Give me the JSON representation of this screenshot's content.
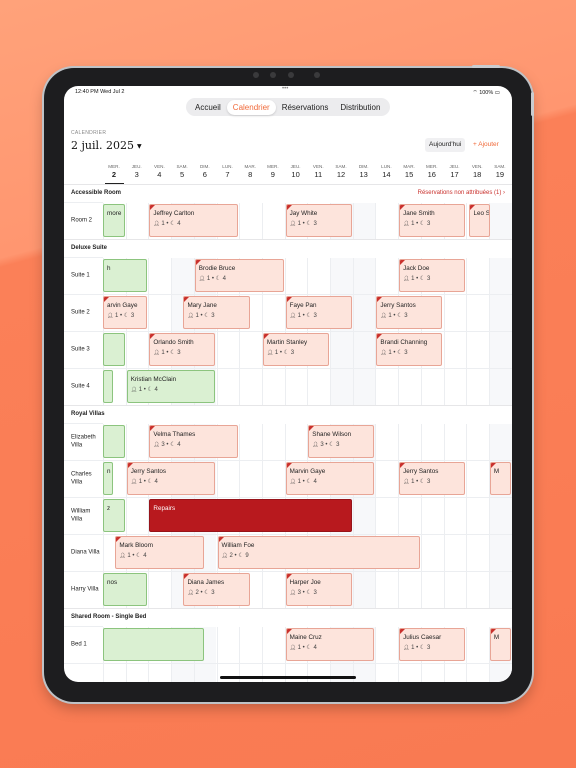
{
  "status": {
    "time": "12:40 PM  Wed Jul 2",
    "battery": "100%",
    "dots": "•••"
  },
  "tabs": [
    {
      "label": "Accueil",
      "active": false
    },
    {
      "label": "Calendrier",
      "active": true
    },
    {
      "label": "Réservations",
      "active": false
    },
    {
      "label": "Distribution",
      "active": false
    }
  ],
  "header": {
    "section_label": "CALENDRIER",
    "date": "2 juil. 2025",
    "today_button": "Aujourd'hui",
    "add_button": "+ Ajouter"
  },
  "days": [
    {
      "name": "MER.",
      "num": "2",
      "today": true
    },
    {
      "name": "JEU.",
      "num": "3"
    },
    {
      "name": "VEN.",
      "num": "4"
    },
    {
      "name": "SAM.",
      "num": "5"
    },
    {
      "name": "DIM.",
      "num": "6"
    },
    {
      "name": "LUN.",
      "num": "7"
    },
    {
      "name": "MAR.",
      "num": "8"
    },
    {
      "name": "MER.",
      "num": "9"
    },
    {
      "name": "JEU.",
      "num": "10"
    },
    {
      "name": "VEN.",
      "num": "11"
    },
    {
      "name": "SAM.",
      "num": "12"
    },
    {
      "name": "DIM.",
      "num": "13"
    },
    {
      "name": "LUN.",
      "num": "14"
    },
    {
      "name": "MAR.",
      "num": "15"
    },
    {
      "name": "MER.",
      "num": "16"
    },
    {
      "name": "JEU.",
      "num": "17"
    },
    {
      "name": "VEN.",
      "num": "18"
    },
    {
      "name": "SAM.",
      "num": "19"
    }
  ],
  "sections": [
    {
      "title": "Accessible Room",
      "right": "Réservations non attribuées (1) ›",
      "rows": [
        {
          "label": "Room 2",
          "bookings": [
            {
              "color": "green",
              "start": -0.3,
              "end": 1.0,
              "name": "more",
              "meta": ""
            },
            {
              "color": "pink",
              "start": 2.0,
              "end": 6.0,
              "name": "Jeffrey Carlton",
              "meta": "1 • 4"
            },
            {
              "color": "pink",
              "start": 8.0,
              "end": 11.0,
              "name": "Jay White",
              "meta": "1 • 3"
            },
            {
              "color": "pink",
              "start": 13.0,
              "end": 16.0,
              "name": "Jane Smith",
              "meta": "1 • 3"
            },
            {
              "color": "pink",
              "start": 16.1,
              "end": 17.1,
              "name": "Leo Sincl",
              "meta": ""
            }
          ]
        }
      ]
    },
    {
      "title": "Deluxe Suite",
      "right": "",
      "rows": [
        {
          "label": "Suite 1",
          "bookings": [
            {
              "color": "green",
              "start": -0.3,
              "end": 2.0,
              "name": "h",
              "meta": ""
            },
            {
              "color": "pink",
              "start": 4.0,
              "end": 8.0,
              "name": "Brodie Bruce",
              "meta": "1 • 4"
            },
            {
              "color": "pink",
              "start": 13.0,
              "end": 16.0,
              "name": "Jack Doe",
              "meta": "1 • 3"
            }
          ]
        },
        {
          "label": "Suite 2",
          "bookings": [
            {
              "color": "pink",
              "start": -0.3,
              "end": 2.0,
              "name": "arvin Gaye",
              "meta": "1 • 3"
            },
            {
              "color": "pink",
              "start": 3.5,
              "end": 6.5,
              "name": "Mary Jane",
              "meta": "1 • 3"
            },
            {
              "color": "pink",
              "start": 8.0,
              "end": 11.0,
              "name": "Faye Pan",
              "meta": "1 • 3"
            },
            {
              "color": "pink",
              "start": 12.0,
              "end": 15.0,
              "name": "Jerry Santos",
              "meta": "1 • 3"
            }
          ]
        },
        {
          "label": "Suite 3",
          "bookings": [
            {
              "color": "green",
              "start": -0.3,
              "end": 1.0,
              "name": "",
              "meta": ""
            },
            {
              "color": "pink",
              "start": 2.0,
              "end": 5.0,
              "name": "Orlando Smith",
              "meta": "1 • 3"
            },
            {
              "color": "pink",
              "start": 7.0,
              "end": 10.0,
              "name": "Martin Stanley",
              "meta": "1 • 3"
            },
            {
              "color": "pink",
              "start": 12.0,
              "end": 15.0,
              "name": "Brandi Channing",
              "meta": "1 • 3"
            }
          ]
        },
        {
          "label": "Suite 4",
          "bookings": [
            {
              "color": "green",
              "start": -0.3,
              "end": 0.5,
              "name": "",
              "meta": ""
            },
            {
              "color": "green",
              "start": 1.0,
              "end": 5.0,
              "name": "Kristian McClain",
              "meta": "1 • 4"
            }
          ]
        }
      ]
    },
    {
      "title": "Royal Villas",
      "right": "",
      "rows": [
        {
          "label": "Elizabeth Villa",
          "bookings": [
            {
              "color": "green",
              "start": -0.3,
              "end": 1.0,
              "name": "",
              "meta": ""
            },
            {
              "color": "pink",
              "start": 2.0,
              "end": 6.0,
              "name": "Velma Thames",
              "meta": "3 • 4"
            },
            {
              "color": "pink",
              "start": 9.0,
              "end": 12.0,
              "name": "Shane Wilson",
              "meta": "3 • 3"
            }
          ]
        },
        {
          "label": "Charles Villa",
          "bookings": [
            {
              "color": "green",
              "start": -0.3,
              "end": 0.5,
              "name": "n C",
              "meta": ""
            },
            {
              "color": "pink",
              "start": 1.0,
              "end": 5.0,
              "name": "Jerry Santos",
              "meta": "1 • 4"
            },
            {
              "color": "pink",
              "start": 8.0,
              "end": 12.0,
              "name": "Marvin Gaye",
              "meta": "1 • 4"
            },
            {
              "color": "pink",
              "start": 13.0,
              "end": 16.0,
              "name": "Jerry Santos",
              "meta": "1 • 3"
            },
            {
              "color": "pink",
              "start": 17.0,
              "end": 18.0,
              "name": "M",
              "meta": ""
            }
          ]
        },
        {
          "label": "William Villa",
          "bookings": [
            {
              "color": "green",
              "start": -0.3,
              "end": 1.0,
              "name": "z",
              "meta": ""
            },
            {
              "color": "red",
              "start": 2.0,
              "end": 11.0,
              "name": "Repairs",
              "meta": ""
            }
          ]
        },
        {
          "label": "Diana Villa",
          "bookings": [
            {
              "color": "pink",
              "start": 0.5,
              "end": 4.5,
              "name": "Mark Bloom",
              "meta": "1 • 4"
            },
            {
              "color": "pink",
              "start": 5.0,
              "end": 14.0,
              "name": "William Foe",
              "meta": "2 • 9"
            }
          ]
        },
        {
          "label": "Harry Villa",
          "bookings": [
            {
              "color": "green",
              "start": -0.3,
              "end": 2.0,
              "name": "nos",
              "meta": ""
            },
            {
              "color": "pink",
              "start": 3.5,
              "end": 6.5,
              "name": "Diana James",
              "meta": "2 • 3"
            },
            {
              "color": "pink",
              "start": 8.0,
              "end": 11.0,
              "name": "Harper Joe",
              "meta": "3 • 3"
            }
          ]
        }
      ]
    },
    {
      "title": "Shared Room - Single Bed",
      "right": "",
      "rows": [
        {
          "label": "Bed 1",
          "bookings": [
            {
              "color": "green",
              "start": -0.3,
              "end": 4.5,
              "name": "",
              "meta": ""
            },
            {
              "color": "pink",
              "start": 8.0,
              "end": 12.0,
              "name": "Maine Cruz",
              "meta": "1 • 4"
            },
            {
              "color": "pink",
              "start": 13.0,
              "end": 16.0,
              "name": "Julius Caesar",
              "meta": "1 • 3"
            },
            {
              "color": "pink",
              "start": 17.0,
              "end": 18.0,
              "name": "M",
              "meta": ""
            }
          ]
        }
      ]
    }
  ],
  "colors": {
    "accent": "#f06a3a",
    "booking_pink": "#fde4dc",
    "booking_green": "#daf0d2",
    "repair_red": "#b8191e",
    "unassigned_red": "#c9302c"
  },
  "icons": {
    "guests": "person-icon",
    "nights": "moon-icon"
  }
}
